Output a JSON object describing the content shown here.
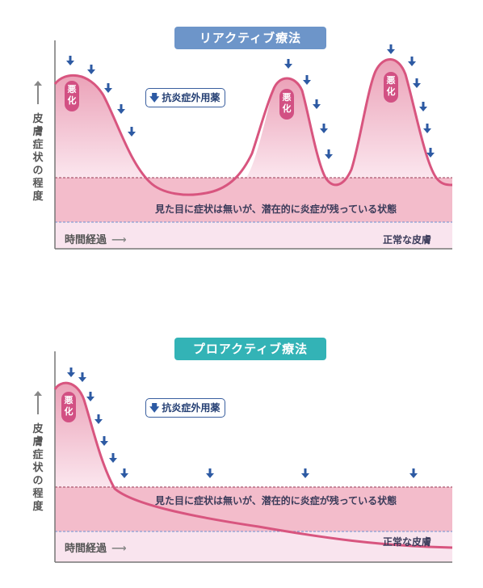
{
  "reactive": {
    "title": "リアクティブ療法",
    "ylabel": "皮膚症状の程度",
    "legend": "抗炎症外用薬",
    "band_text": "見た目に症状は無いが、潜在的に炎症が残っている状態",
    "normal_text": "正常な皮膚",
    "time_label": "時間経過",
    "flare_label": "悪化",
    "colors": {
      "title_bg": "#6d95c9"
    }
  },
  "proactive": {
    "title": "プロアクティブ療法",
    "ylabel": "皮膚症状の程度",
    "legend": "抗炎症外用薬",
    "band_text": "見た目に症状は無いが、潜在的に炎症が残っている状態",
    "normal_text": "正常な皮膚",
    "time_label": "時間経過",
    "flare_label": "悪化",
    "colors": {
      "title_bg": "#33b3b6"
    }
  },
  "colors": {
    "curve": "#d8557f",
    "band": "#f3bccb",
    "normal_zone": "#f9e4ee",
    "arrow": "#2d5aa3"
  }
}
